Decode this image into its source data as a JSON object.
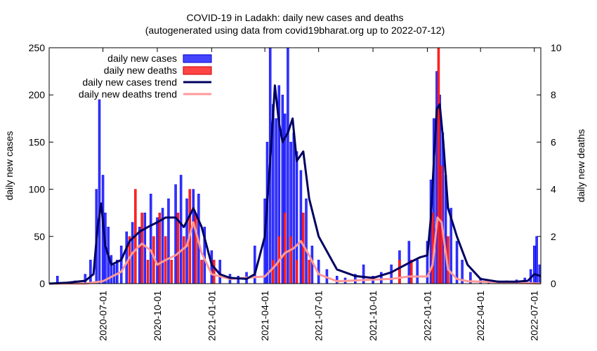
{
  "chart_data": {
    "type": "bar",
    "title": "COVID-19 in Ladakh: daily new cases and deaths",
    "subtitle": "(autogenerated using data from covid19bharat.org up to 2022-07-12)",
    "xlabel": "",
    "ylabel": "daily new cases",
    "y2label": "daily new deaths",
    "xlim": [
      "2020-04-01",
      "2022-07-12"
    ],
    "ylim": [
      0,
      250
    ],
    "y2lim": [
      0,
      10
    ],
    "x_ticks": [
      "2020-07-01",
      "2020-10-01",
      "2021-01-01",
      "2021-04-01",
      "2021-07-01",
      "2021-10-01",
      "2022-01-01",
      "2022-04-01",
      "2022-07-01"
    ],
    "y_ticks": [
      0,
      50,
      100,
      150,
      200,
      250
    ],
    "y2_ticks": [
      0,
      2,
      4,
      6,
      8,
      10
    ],
    "legend_position": "top-left",
    "colors": {
      "cases_bar": "#0000ff",
      "deaths_bar": "#ff0000",
      "cases_trend": "#000060",
      "deaths_trend": "#ff9999"
    },
    "series": [
      {
        "name": "daily new cases",
        "kind": "bar",
        "axis": "y",
        "dates": [
          "2020-04-15",
          "2020-05-15",
          "2020-06-01",
          "2020-06-10",
          "2020-06-20",
          "2020-06-25",
          "2020-07-01",
          "2020-07-05",
          "2020-07-10",
          "2020-07-15",
          "2020-07-20",
          "2020-07-25",
          "2020-08-01",
          "2020-08-10",
          "2020-08-20",
          "2020-09-01",
          "2020-09-10",
          "2020-09-20",
          "2020-10-01",
          "2020-10-10",
          "2020-10-20",
          "2020-11-01",
          "2020-11-10",
          "2020-11-20",
          "2020-12-01",
          "2020-12-10",
          "2020-12-20",
          "2021-01-01",
          "2021-01-15",
          "2021-02-01",
          "2021-02-15",
          "2021-03-01",
          "2021-03-15",
          "2021-04-01",
          "2021-04-05",
          "2021-04-10",
          "2021-04-15",
          "2021-04-20",
          "2021-04-25",
          "2021-05-01",
          "2021-05-05",
          "2021-05-10",
          "2021-05-15",
          "2021-05-20",
          "2021-05-25",
          "2021-06-01",
          "2021-06-10",
          "2021-06-20",
          "2021-07-01",
          "2021-07-15",
          "2021-08-01",
          "2021-08-15",
          "2021-09-01",
          "2021-09-15",
          "2021-10-01",
          "2021-10-15",
          "2021-11-01",
          "2021-11-15",
          "2021-12-01",
          "2021-12-15",
          "2022-01-01",
          "2022-01-07",
          "2022-01-12",
          "2022-01-17",
          "2022-01-22",
          "2022-01-27",
          "2022-02-01",
          "2022-02-10",
          "2022-02-20",
          "2022-03-01",
          "2022-03-15",
          "2022-04-01",
          "2022-04-15",
          "2022-05-01",
          "2022-05-15",
          "2022-06-01",
          "2022-06-15",
          "2022-06-25",
          "2022-07-01",
          "2022-07-05",
          "2022-07-10"
        ],
        "values": [
          8,
          3,
          10,
          25,
          100,
          195,
          115,
          75,
          60,
          30,
          20,
          25,
          40,
          55,
          65,
          60,
          75,
          95,
          70,
          80,
          90,
          105,
          115,
          90,
          100,
          95,
          60,
          35,
          25,
          10,
          8,
          12,
          40,
          90,
          150,
          255,
          190,
          175,
          210,
          200,
          180,
          255,
          150,
          160,
          140,
          120,
          90,
          40,
          25,
          15,
          8,
          6,
          10,
          20,
          8,
          12,
          20,
          35,
          45,
          25,
          45,
          110,
          175,
          225,
          200,
          160,
          115,
          80,
          45,
          25,
          12,
          6,
          4,
          3,
          3,
          4,
          6,
          15,
          40,
          50,
          20
        ]
      },
      {
        "name": "daily new deaths",
        "kind": "bar",
        "axis": "y2",
        "dates": [
          "2020-08-15",
          "2020-08-25",
          "2020-09-05",
          "2020-09-15",
          "2020-09-25",
          "2020-10-05",
          "2020-10-15",
          "2020-10-25",
          "2020-11-05",
          "2020-11-15",
          "2020-11-25",
          "2020-12-05",
          "2020-12-15",
          "2021-01-05",
          "2021-04-15",
          "2021-04-25",
          "2021-05-05",
          "2021-05-15",
          "2021-05-25",
          "2021-06-05",
          "2021-06-15",
          "2021-11-15",
          "2021-12-05",
          "2022-01-10",
          "2022-01-20",
          "2022-01-25",
          "2022-02-05"
        ],
        "values": [
          2,
          4,
          3,
          1,
          2,
          3,
          2,
          1,
          3,
          2,
          4,
          3,
          1,
          1,
          1,
          2,
          3,
          2,
          1,
          3,
          1,
          1,
          1,
          3,
          10,
          5,
          2
        ]
      },
      {
        "name": "daily new cases trend",
        "kind": "line",
        "axis": "y",
        "dates": [
          "2020-04-01",
          "2020-05-01",
          "2020-06-01",
          "2020-06-15",
          "2020-06-22",
          "2020-06-28",
          "2020-07-05",
          "2020-07-15",
          "2020-08-01",
          "2020-08-15",
          "2020-09-01",
          "2020-09-15",
          "2020-10-01",
          "2020-10-15",
          "2020-11-01",
          "2020-11-15",
          "2020-12-01",
          "2020-12-15",
          "2021-01-01",
          "2021-01-15",
          "2021-02-01",
          "2021-03-01",
          "2021-03-15",
          "2021-04-01",
          "2021-04-10",
          "2021-04-18",
          "2021-04-25",
          "2021-05-01",
          "2021-05-10",
          "2021-05-18",
          "2021-05-25",
          "2021-06-05",
          "2021-06-15",
          "2021-07-01",
          "2021-08-01",
          "2021-09-01",
          "2021-10-01",
          "2021-11-01",
          "2021-12-01",
          "2021-12-20",
          "2022-01-01",
          "2022-01-07",
          "2022-01-12",
          "2022-01-17",
          "2022-01-22",
          "2022-01-28",
          "2022-02-05",
          "2022-02-20",
          "2022-03-10",
          "2022-04-01",
          "2022-05-01",
          "2022-06-01",
          "2022-06-20",
          "2022-07-01",
          "2022-07-12"
        ],
        "values": [
          0,
          1,
          3,
          10,
          60,
          85,
          40,
          20,
          25,
          45,
          55,
          60,
          65,
          70,
          70,
          60,
          80,
          60,
          20,
          10,
          6,
          5,
          10,
          50,
          130,
          210,
          170,
          150,
          160,
          175,
          130,
          140,
          90,
          50,
          15,
          8,
          6,
          12,
          22,
          28,
          30,
          70,
          130,
          185,
          190,
          150,
          80,
          50,
          20,
          5,
          2,
          2,
          3,
          10,
          8
        ]
      },
      {
        "name": "daily new deaths trend",
        "kind": "line",
        "axis": "y2",
        "dates": [
          "2020-04-01",
          "2020-06-01",
          "2020-07-01",
          "2020-08-01",
          "2020-08-20",
          "2020-09-05",
          "2020-09-20",
          "2020-10-01",
          "2020-10-15",
          "2020-11-01",
          "2020-11-20",
          "2020-12-01",
          "2020-12-15",
          "2021-01-01",
          "2021-02-01",
          "2021-04-01",
          "2021-04-20",
          "2021-05-05",
          "2021-05-20",
          "2021-06-01",
          "2021-06-15",
          "2021-07-01",
          "2021-08-01",
          "2021-11-01",
          "2021-12-01",
          "2022-01-01",
          "2022-01-10",
          "2022-01-18",
          "2022-01-25",
          "2022-02-05",
          "2022-02-20",
          "2022-03-10",
          "2022-07-12"
        ],
        "values": [
          0,
          0,
          0.1,
          0.5,
          1.3,
          1.7,
          1.4,
          0.8,
          1.0,
          1.2,
          1.6,
          2.6,
          1.3,
          0.4,
          0.2,
          0.3,
          0.8,
          1.3,
          1.5,
          1.8,
          1.2,
          0.4,
          0.1,
          0.2,
          0.3,
          0.3,
          0.8,
          2.8,
          2.6,
          0.6,
          0.2,
          0.1,
          0
        ]
      }
    ]
  }
}
